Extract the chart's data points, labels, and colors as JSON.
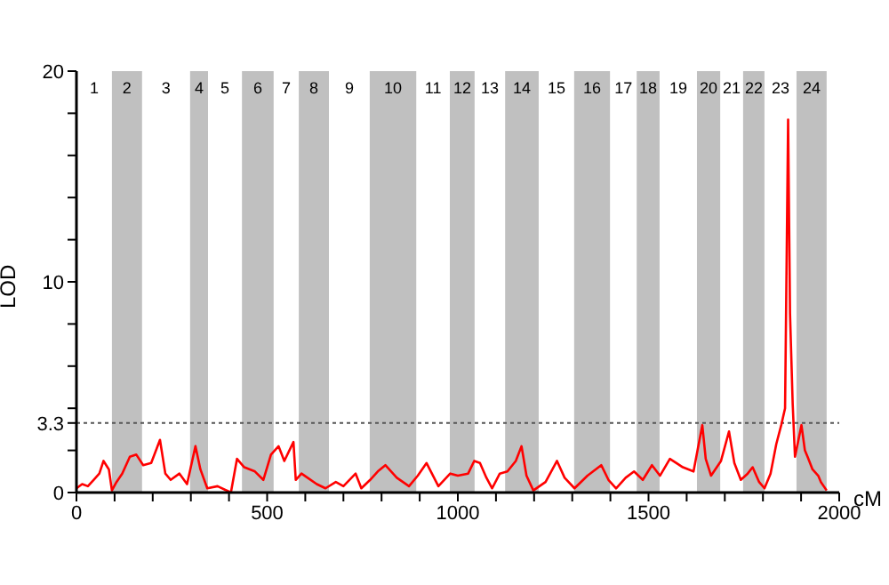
{
  "chart_data": {
    "type": "line",
    "xlabel": "cM",
    "ylabel": "LOD",
    "xlim": [
      0,
      2000
    ],
    "xticks": [
      0,
      {
        "value": 100,
        "label": null
      },
      {
        "value": 200,
        "label": null
      },
      {
        "value": 300,
        "label": null
      },
      {
        "value": 400,
        "label": null
      },
      500,
      {
        "value": 600,
        "label": null
      },
      {
        "value": 700,
        "label": null
      },
      {
        "value": 800,
        "label": null
      },
      {
        "value": 900,
        "label": null
      },
      1000,
      {
        "value": 1100,
        "label": null
      },
      {
        "value": 1200,
        "label": null
      },
      {
        "value": 1300,
        "label": null
      },
      {
        "value": 1400,
        "label": null
      },
      1500,
      {
        "value": 1600,
        "label": null
      },
      {
        "value": 1700,
        "label": null
      },
      {
        "value": 1800,
        "label": null
      },
      {
        "value": 1900,
        "label": null
      },
      2000
    ],
    "ylim": [
      0,
      20
    ],
    "yticks": [
      0,
      {
        "value": 2,
        "label": null
      },
      3.3,
      {
        "value": 4,
        "label": null
      },
      {
        "value": 6,
        "label": null
      },
      {
        "value": 8,
        "label": null
      },
      10,
      {
        "value": 12,
        "label": null
      },
      {
        "value": 14,
        "label": null
      },
      {
        "value": 16,
        "label": null
      },
      {
        "value": 18,
        "label": null
      },
      20
    ],
    "grid": false,
    "marker": "none",
    "line_style": "solid",
    "series": [
      {
        "color": "#ff0000",
        "x": [
          0,
          15,
          30,
          45,
          60,
          71,
          85,
          93,
          105,
          120,
          140,
          157,
          175,
          196,
          219,
          233,
          247,
          270,
          290,
          312,
          325,
          343,
          370,
          405,
          421,
          440,
          468,
          490,
          510,
          530,
          545,
          569,
          575,
          590,
          606,
          630,
          653,
          680,
          700,
          732,
          747,
          770,
          790,
          810,
          840,
          872,
          895,
          918,
          949,
          980,
          1000,
          1027,
          1043,
          1058,
          1075,
          1090,
          1110,
          1130,
          1152,
          1167,
          1180,
          1198,
          1230,
          1260,
          1280,
          1306,
          1340,
          1376,
          1395,
          1415,
          1440,
          1462,
          1485,
          1509,
          1530,
          1556,
          1590,
          1618,
          1641,
          1650,
          1664,
          1690,
          1711,
          1725,
          1742,
          1760,
          1773,
          1790,
          1804,
          1820,
          1835,
          1848,
          1858,
          1866,
          1871,
          1878,
          1884,
          1892,
          1901,
          1910,
          1917,
          1930,
          1945,
          1952,
          1967
        ],
        "values": [
          0.2,
          0.4,
          0.3,
          0.6,
          0.9,
          1.5,
          1.1,
          0.1,
          0.5,
          0.9,
          1.7,
          1.8,
          1.3,
          1.4,
          2.5,
          0.9,
          0.6,
          0.9,
          0.4,
          2.2,
          1.1,
          0.2,
          0.3,
          0.0,
          1.6,
          1.2,
          1.0,
          0.6,
          1.8,
          2.2,
          1.5,
          2.4,
          0.6,
          0.9,
          0.7,
          0.4,
          0.2,
          0.5,
          0.3,
          0.9,
          0.2,
          0.6,
          1.0,
          1.3,
          0.7,
          0.3,
          0.8,
          1.4,
          0.3,
          0.9,
          0.8,
          0.9,
          1.5,
          1.4,
          0.7,
          0.2,
          0.9,
          1.0,
          1.5,
          2.2,
          0.8,
          0.1,
          0.5,
          1.5,
          0.7,
          0.2,
          0.8,
          1.3,
          0.6,
          0.2,
          0.7,
          1.0,
          0.6,
          1.3,
          0.8,
          1.6,
          1.2,
          1.0,
          3.2,
          1.6,
          0.8,
          1.5,
          2.9,
          1.4,
          0.6,
          0.9,
          1.2,
          0.5,
          0.2,
          0.9,
          2.3,
          3.2,
          4.0,
          17.7,
          8.5,
          4.2,
          1.7,
          2.4,
          3.2,
          2.0,
          1.7,
          1.1,
          0.8,
          0.5,
          0.1
        ]
      }
    ],
    "ref_lines": [
      {
        "axis": "y",
        "value": 3.3,
        "color": "#555555",
        "line_style": "dotted"
      }
    ],
    "bands": [
      {
        "axis": "x",
        "from": 93,
        "to": 172,
        "label": "2",
        "color": "#c0c0c0"
      },
      {
        "axis": "x",
        "from": 298,
        "to": 345,
        "label": "4",
        "color": "#c0c0c0"
      },
      {
        "axis": "x",
        "from": 434,
        "to": 517,
        "label": "6",
        "color": "#c0c0c0"
      },
      {
        "axis": "x",
        "from": 583,
        "to": 662,
        "label": "8",
        "color": "#c0c0c0"
      },
      {
        "axis": "x",
        "from": 769,
        "to": 891,
        "label": "10",
        "color": "#c0c0c0"
      },
      {
        "axis": "x",
        "from": 979,
        "to": 1044,
        "label": "12",
        "color": "#c0c0c0"
      },
      {
        "axis": "x",
        "from": 1124,
        "to": 1212,
        "label": "14",
        "color": "#c0c0c0"
      },
      {
        "axis": "x",
        "from": 1305,
        "to": 1399,
        "label": "16",
        "color": "#c0c0c0"
      },
      {
        "axis": "x",
        "from": 1469,
        "to": 1529,
        "label": "18",
        "color": "#c0c0c0"
      },
      {
        "axis": "x",
        "from": 1627,
        "to": 1688,
        "label": "20",
        "color": "#c0c0c0"
      },
      {
        "axis": "x",
        "from": 1748,
        "to": 1804,
        "label": "22",
        "color": "#c0c0c0"
      },
      {
        "axis": "x",
        "from": 1888,
        "to": 1967,
        "label": "24",
        "color": "#c0c0c0"
      }
    ],
    "annotations": [
      "1",
      "3",
      "5",
      "7",
      "9",
      "11",
      "13",
      "15",
      "17",
      "19",
      "21",
      "23"
    ]
  }
}
